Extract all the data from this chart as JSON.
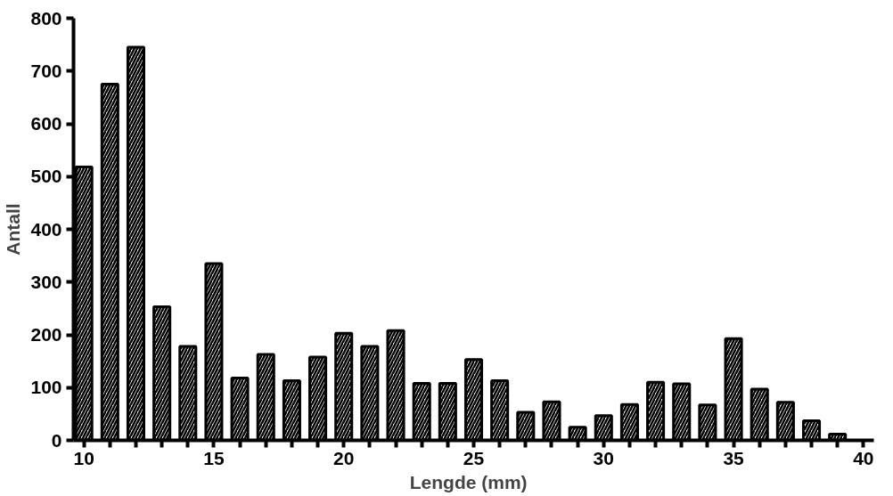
{
  "chart_data": {
    "type": "bar",
    "xlabel": "Lengde   (mm)",
    "ylabel": "Antall",
    "x": [
      10,
      11,
      12,
      13,
      14,
      15,
      16,
      17,
      18,
      19,
      20,
      21,
      22,
      23,
      24,
      25,
      26,
      27,
      28,
      29,
      30,
      31,
      32,
      33,
      34,
      35,
      36,
      37,
      38,
      39
    ],
    "values": [
      518,
      675,
      745,
      253,
      178,
      335,
      118,
      163,
      113,
      158,
      203,
      178,
      208,
      108,
      108,
      153,
      113,
      53,
      73,
      25,
      47,
      68,
      110,
      107,
      67,
      193,
      97,
      72,
      37,
      12
    ],
    "color": "#000000",
    "xlim": [
      9.6,
      40.4
    ],
    "ylim": [
      0,
      800
    ],
    "xticks": [
      10,
      {
        "value": 11,
        "label": null
      },
      {
        "value": 12,
        "label": null
      },
      {
        "value": 13,
        "label": null
      },
      {
        "value": 14,
        "label": null
      },
      15,
      {
        "value": 16,
        "label": null
      },
      {
        "value": 17,
        "label": null
      },
      {
        "value": 18,
        "label": null
      },
      {
        "value": 19,
        "label": null
      },
      20,
      {
        "value": 21,
        "label": null
      },
      {
        "value": 22,
        "label": null
      },
      {
        "value": 23,
        "label": null
      },
      {
        "value": 24,
        "label": null
      },
      25,
      {
        "value": 26,
        "label": null
      },
      {
        "value": 27,
        "label": null
      },
      {
        "value": 28,
        "label": null
      },
      {
        "value": 29,
        "label": null
      },
      30,
      {
        "value": 31,
        "label": null
      },
      {
        "value": 32,
        "label": null
      },
      {
        "value": 33,
        "label": null
      },
      {
        "value": 34,
        "label": null
      },
      35,
      {
        "value": 36,
        "label": null
      },
      {
        "value": 37,
        "label": null
      },
      {
        "value": 38,
        "label": null
      },
      {
        "value": 39,
        "label": null
      },
      40
    ],
    "yticks": [
      0,
      100,
      200,
      300,
      400,
      500,
      600,
      700,
      800
    ],
    "grid": false
  }
}
